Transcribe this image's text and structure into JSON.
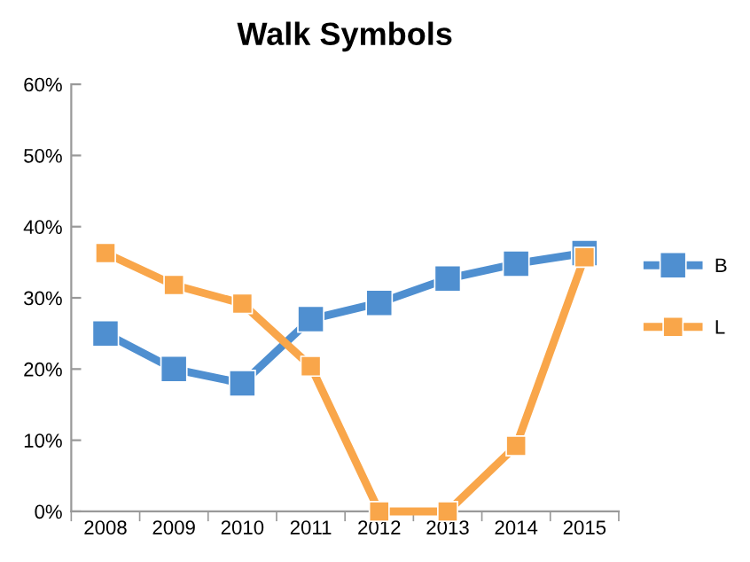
{
  "chart_data": {
    "type": "line",
    "title": "Walk Symbols",
    "categories": [
      "2008",
      "2009",
      "2010",
      "2011",
      "2012",
      "2013",
      "2014",
      "2015"
    ],
    "series": [
      {
        "name": "B",
        "color": "#4f8fd0",
        "values": [
          25,
          20,
          18,
          27,
          29.3,
          32.7,
          34.8,
          36.3
        ]
      },
      {
        "name": "L",
        "color": "#f9a64a",
        "values": [
          36.3,
          31.8,
          29.2,
          20.4,
          0,
          0,
          9.2,
          35.7
        ]
      }
    ],
    "ylim": [
      0,
      60
    ],
    "yticks": [
      {
        "value": 0,
        "label": "0%"
      },
      {
        "value": 10,
        "label": "10%"
      },
      {
        "value": 20,
        "label": "20%"
      },
      {
        "value": 30,
        "label": "30%"
      },
      {
        "value": 40,
        "label": "40%"
      },
      {
        "value": 50,
        "label": "50%"
      },
      {
        "value": 60,
        "label": "60%"
      }
    ],
    "grid": false,
    "legend": "right",
    "marker": "square",
    "line_style": "solid"
  }
}
